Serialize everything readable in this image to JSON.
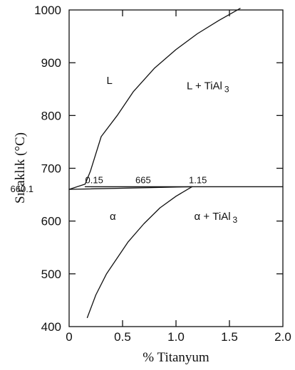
{
  "chart_data": {
    "type": "line",
    "title": "",
    "xlabel": "% Titanyum",
    "ylabel": "Sıcaklık (°C)",
    "xlim": [
      0,
      2.0
    ],
    "ylim": [
      400,
      1000
    ],
    "x_ticks": [
      0,
      0.5,
      1.0,
      1.5,
      2.0
    ],
    "x_tick_labels": [
      "0",
      "0.5",
      "1.0",
      "1.5",
      "2.0"
    ],
    "y_ticks": [
      400,
      500,
      600,
      700,
      800,
      900,
      1000
    ],
    "y_tick_labels": [
      "400",
      "500",
      "600",
      "700",
      "800",
      "900",
      "1000"
    ],
    "grid": false,
    "series": [
      {
        "x": [
          0.15,
          0.2,
          0.3,
          0.45,
          0.6,
          0.8,
          1.0,
          1.2,
          1.4,
          1.6
        ],
        "y": [
          670,
          695,
          760,
          800,
          845,
          890,
          925,
          955,
          980,
          1003
        ]
      },
      {
        "x": [
          0,
          0.15
        ],
        "y": [
          660.1,
          670
        ]
      },
      {
        "x": [
          0,
          1.15
        ],
        "y": [
          660.1,
          665
        ]
      },
      {
        "x": [
          0.15,
          2.0
        ],
        "y": [
          665,
          665
        ]
      },
      {
        "x": [
          0.17,
          0.25,
          0.35,
          0.45,
          0.55,
          0.7,
          0.85,
          1.0,
          1.15
        ],
        "y": [
          417,
          460,
          500,
          530,
          560,
          595,
          625,
          647,
          665
        ]
      }
    ],
    "annotations": [
      {
        "text": "L",
        "x": 0.35,
        "y": 860
      },
      {
        "text": "L + TiAl",
        "subscript": "3",
        "x": 1.1,
        "y": 850
      },
      {
        "text": "α",
        "x": 0.38,
        "y": 602
      },
      {
        "text": "α + TiAl",
        "subscript": "3",
        "x": 1.17,
        "y": 602
      },
      {
        "text": "0.15",
        "x": 0.15,
        "y": 672
      },
      {
        "text": "665",
        "x": 0.62,
        "y": 672
      },
      {
        "text": "1.15",
        "x": 1.12,
        "y": 672
      },
      {
        "text": "660.1",
        "x": -0.55,
        "y": 655
      }
    ]
  }
}
